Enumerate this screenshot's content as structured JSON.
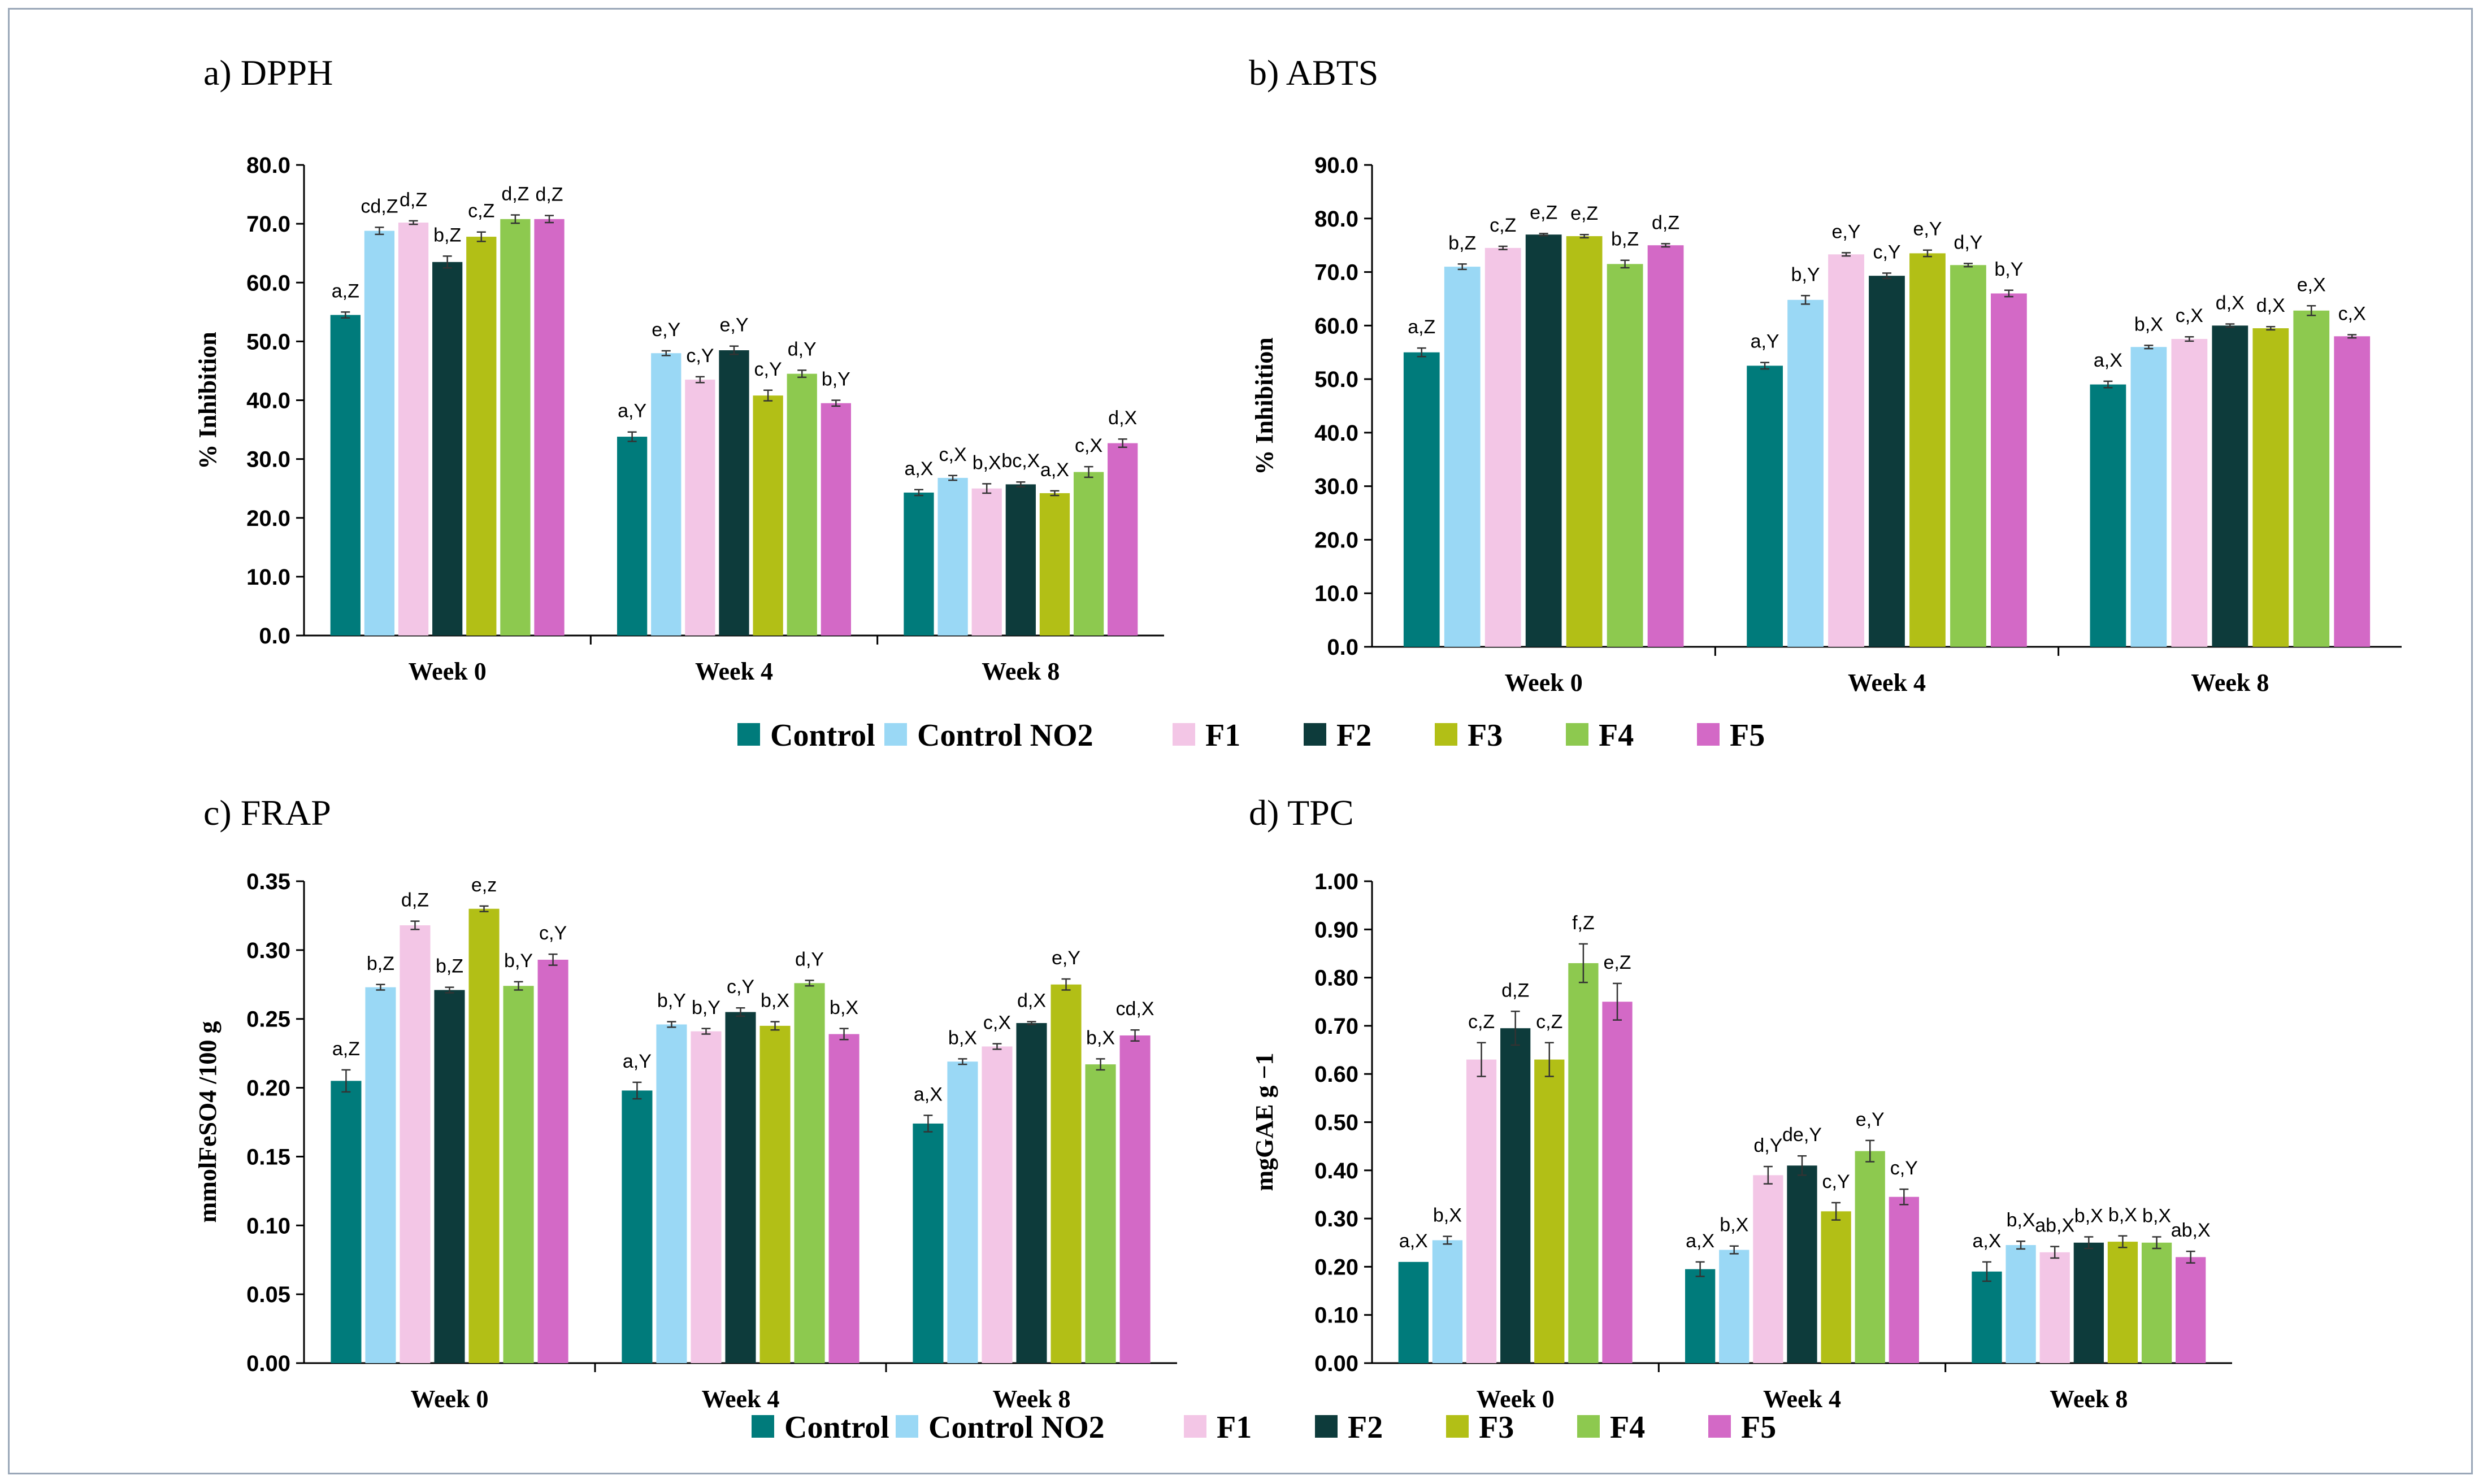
{
  "series_colors": {
    "Control": "#007b7b",
    "Control NO2": "#9ad8f5",
    "F1": "#f3c6e6",
    "F2": "#0d3b3b",
    "F3": "#b2bf16",
    "F4": "#8dc94f",
    "F5": "#d369c6"
  },
  "legends": [
    {
      "items": [
        "Control",
        "Control NO2",
        "F1",
        "F2",
        "F3",
        "F4",
        "F5"
      ]
    },
    {
      "items": [
        "Control",
        "Control NO2",
        "F1",
        "F2",
        "F3",
        "F4",
        "F5"
      ]
    }
  ],
  "chart_data": [
    {
      "type": "bar",
      "title": "a) DPPH",
      "ylabel": "% Inhibition",
      "xlabel": "",
      "categories": [
        "Week 0",
        "Week 4",
        "Week 8"
      ],
      "ylim": [
        0,
        80
      ],
      "yticks": [
        "0.0",
        "10.0",
        "20.0",
        "30.0",
        "40.0",
        "50.0",
        "60.0",
        "70.0",
        "80.0"
      ],
      "series": [
        {
          "name": "Control",
          "values": [
            54.5,
            33.8,
            24.3
          ],
          "errors": [
            0.5,
            0.8,
            0.5
          ],
          "labels": [
            "a,Z",
            "a,Y",
            "a,X"
          ]
        },
        {
          "name": "Control NO2",
          "values": [
            68.8,
            48.0,
            26.8
          ],
          "errors": [
            0.6,
            0.4,
            0.4
          ],
          "labels": [
            "cd,Z",
            "e,Y",
            "c,X"
          ]
        },
        {
          "name": "F1",
          "values": [
            70.2,
            43.5,
            25.0
          ],
          "errors": [
            0.3,
            0.5,
            0.8
          ],
          "labels": [
            "d,Z",
            "c,Y",
            "b,X"
          ]
        },
        {
          "name": "F2",
          "values": [
            63.5,
            48.5,
            25.7
          ],
          "errors": [
            1.0,
            0.7,
            0.4
          ],
          "labels": [
            "b,Z",
            "e,Y",
            "bc,X"
          ]
        },
        {
          "name": "F3",
          "values": [
            67.8,
            40.8,
            24.2
          ],
          "errors": [
            0.8,
            0.9,
            0.4
          ],
          "labels": [
            "c,Z",
            "c,Y",
            "a,X"
          ]
        },
        {
          "name": "F4",
          "values": [
            70.8,
            44.5,
            27.8
          ],
          "errors": [
            0.7,
            0.6,
            0.9
          ],
          "labels": [
            "d,Z",
            "d,Y",
            "c,X"
          ]
        },
        {
          "name": "F5",
          "values": [
            70.8,
            39.5,
            32.7
          ],
          "errors": [
            0.6,
            0.5,
            0.7
          ],
          "labels": [
            "d,Z",
            "b,Y",
            "d,X"
          ]
        }
      ]
    },
    {
      "type": "bar",
      "title": "b) ABTS",
      "ylabel": "% Inhibition",
      "xlabel": "",
      "categories": [
        "Week 0",
        "Week 4",
        "Week 8"
      ],
      "ylim": [
        0,
        90
      ],
      "yticks": [
        "0.0",
        "10.0",
        "20.0",
        "30.0",
        "40.0",
        "50.0",
        "60.0",
        "70.0",
        "80.0",
        "90.0"
      ],
      "series": [
        {
          "name": "Control",
          "values": [
            55.0,
            52.5,
            49.0
          ],
          "errors": [
            0.8,
            0.6,
            0.6
          ],
          "labels": [
            "a,Z",
            "a,Y",
            "a,X"
          ]
        },
        {
          "name": "Control NO2",
          "values": [
            71.0,
            64.8,
            56.0
          ],
          "errors": [
            0.5,
            0.8,
            0.3
          ],
          "labels": [
            "b,Z",
            "b,Y",
            "b,X"
          ]
        },
        {
          "name": "F1",
          "values": [
            74.5,
            73.3,
            57.5
          ],
          "errors": [
            0.3,
            0.3,
            0.4
          ],
          "labels": [
            "c,Z",
            "e,Y",
            "c,X"
          ]
        },
        {
          "name": "F2",
          "values": [
            77.0,
            69.3,
            60.0
          ],
          "errors": [
            0.2,
            0.5,
            0.3
          ],
          "labels": [
            "e,Z",
            "c,Y",
            "d,X"
          ]
        },
        {
          "name": "F3",
          "values": [
            76.7,
            73.5,
            59.5
          ],
          "errors": [
            0.3,
            0.6,
            0.3
          ],
          "labels": [
            "e,Z",
            "e,Y",
            "d,X"
          ]
        },
        {
          "name": "F4",
          "values": [
            71.5,
            71.3,
            62.8
          ],
          "errors": [
            0.7,
            0.3,
            0.9
          ],
          "labels": [
            "b,Z",
            "d,Y",
            "e,X"
          ]
        },
        {
          "name": "F5",
          "values": [
            75.0,
            66.0,
            58.0
          ],
          "errors": [
            0.3,
            0.6,
            0.3
          ],
          "labels": [
            "d,Z",
            "b,Y",
            "c,X"
          ]
        }
      ]
    },
    {
      "type": "bar",
      "title": "c) FRAP",
      "ylabel": "mmolFeSO4 /100 g",
      "xlabel": "",
      "categories": [
        "Week 0",
        "Week 4",
        "Week 8"
      ],
      "ylim": [
        0,
        0.35
      ],
      "yticks": [
        "0.00",
        "0.05",
        "0.10",
        "0.15",
        "0.20",
        "0.25",
        "0.30",
        "0.35"
      ],
      "series": [
        {
          "name": "Control",
          "values": [
            0.205,
            0.198,
            0.174
          ],
          "errors": [
            0.008,
            0.006,
            0.006
          ],
          "labels": [
            "a,Z",
            "a,Y",
            "a,X"
          ]
        },
        {
          "name": "Control NO2",
          "values": [
            0.273,
            0.246,
            0.219
          ],
          "errors": [
            0.002,
            0.002,
            0.002
          ],
          "labels": [
            "b,Z",
            "b,Y",
            "b,X"
          ]
        },
        {
          "name": "F1",
          "values": [
            0.318,
            0.241,
            0.23
          ],
          "errors": [
            0.003,
            0.002,
            0.002
          ],
          "labels": [
            "d,Z",
            "b,Y",
            "c,X"
          ]
        },
        {
          "name": "F2",
          "values": [
            0.271,
            0.255,
            0.247
          ],
          "errors": [
            0.002,
            0.003,
            0.001
          ],
          "labels": [
            "b,Z",
            "c,Y",
            "d,X"
          ]
        },
        {
          "name": "F3",
          "values": [
            0.33,
            0.245,
            0.275
          ],
          "errors": [
            0.002,
            0.003,
            0.004
          ],
          "labels": [
            "e,z",
            "b,X",
            "e,Y"
          ]
        },
        {
          "name": "F4",
          "values": [
            0.274,
            0.276,
            0.217
          ],
          "errors": [
            0.003,
            0.002,
            0.004
          ],
          "labels": [
            "b,Y",
            "d,Y",
            "b,X"
          ]
        },
        {
          "name": "F5",
          "values": [
            0.293,
            0.239,
            0.238
          ],
          "errors": [
            0.004,
            0.004,
            0.004
          ],
          "labels": [
            "c,Y",
            "b,X",
            "cd,X"
          ]
        }
      ]
    },
    {
      "type": "bar",
      "title": "d) TPC",
      "ylabel": "mgGAE g −1",
      "xlabel": "",
      "categories": [
        "Week 0",
        "Week 4",
        "Week 8"
      ],
      "ylim": [
        0,
        1.0
      ],
      "yticks": [
        "0.00",
        "0.10",
        "0.20",
        "0.30",
        "0.40",
        "0.50",
        "0.60",
        "0.70",
        "0.80",
        "0.90",
        "1.00"
      ],
      "series": [
        {
          "name": "Control",
          "values": [
            0.21,
            0.195,
            0.19
          ],
          "errors": [
            0.0,
            0.015,
            0.02
          ],
          "labels": [
            "a,X",
            "a,X",
            "a,X"
          ]
        },
        {
          "name": "Control NO2",
          "values": [
            0.255,
            0.235,
            0.245
          ],
          "errors": [
            0.008,
            0.008,
            0.008
          ],
          "labels": [
            "b,X",
            "b,X",
            "b,X"
          ]
        },
        {
          "name": "F1",
          "values": [
            0.63,
            0.39,
            0.23
          ],
          "errors": [
            0.035,
            0.018,
            0.012
          ],
          "labels": [
            "c,Z",
            "d,Y",
            "ab,X"
          ]
        },
        {
          "name": "F2",
          "values": [
            0.695,
            0.41,
            0.25
          ],
          "errors": [
            0.035,
            0.02,
            0.012
          ],
          "labels": [
            "d,Z",
            "de,Y",
            "b,X"
          ]
        },
        {
          "name": "F3",
          "values": [
            0.63,
            0.315,
            0.252
          ],
          "errors": [
            0.035,
            0.018,
            0.012
          ],
          "labels": [
            "c,Z",
            "c,Y",
            "b,X"
          ]
        },
        {
          "name": "F4",
          "values": [
            0.83,
            0.44,
            0.25
          ],
          "errors": [
            0.04,
            0.022,
            0.012
          ],
          "labels": [
            "f,Z",
            "e,Y",
            "b,X"
          ]
        },
        {
          "name": "F5",
          "values": [
            0.75,
            0.345,
            0.22
          ],
          "errors": [
            0.038,
            0.016,
            0.012
          ],
          "labels": [
            "e,Z",
            "c,Y",
            "ab,X"
          ]
        }
      ]
    }
  ]
}
